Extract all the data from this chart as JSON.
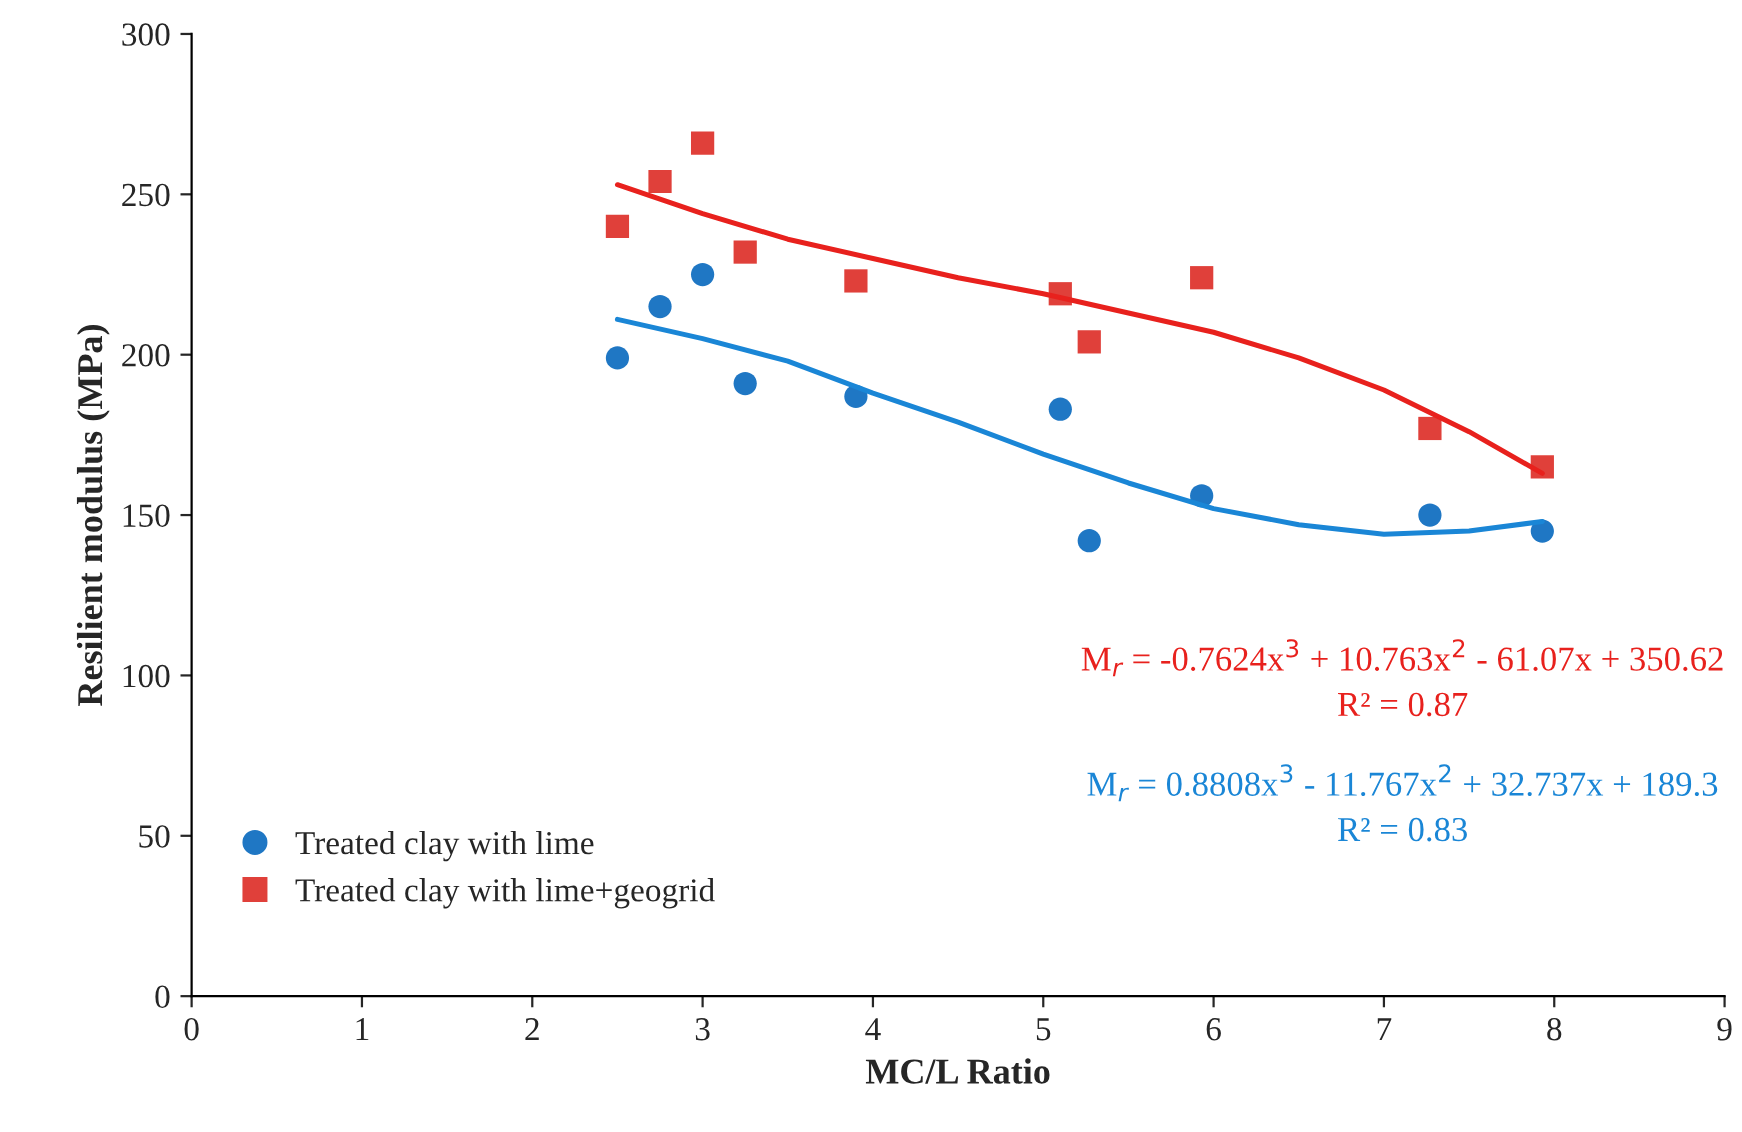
{
  "chart_data": {
    "type": "scatter",
    "xlabel": "MC/L Ratio",
    "ylabel": "Resilient modulus (MPa)",
    "xlim": [
      0,
      9
    ],
    "xticks": [
      0,
      1,
      2,
      3,
      4,
      5,
      6,
      7,
      8,
      9
    ],
    "ylim": [
      0,
      300
    ],
    "yticks": [
      0,
      50,
      100,
      150,
      200,
      250,
      300
    ],
    "grid": false,
    "legend": "bottom left",
    "series": [
      {
        "name": "Treated clay with lime",
        "color": "#1f77c4",
        "marker": "circle",
        "x": [
          2.5,
          2.75,
          3.0,
          3.25,
          3.9,
          5.1,
          5.27,
          5.93,
          7.27,
          7.93
        ],
        "values": [
          199,
          215,
          225,
          191,
          187,
          183,
          142,
          156,
          150,
          145
        ]
      },
      {
        "name": "Treated clay with lime+geogrid",
        "color": "#e0403a",
        "marker": "square",
        "x": [
          2.5,
          2.75,
          3.0,
          3.25,
          3.9,
          5.1,
          5.27,
          5.93,
          7.27,
          7.93
        ],
        "values": [
          240,
          254,
          266,
          232,
          223,
          219,
          204,
          224,
          177,
          165
        ]
      },
      {
        "type": "line",
        "color": "#e8211d",
        "x": [
          2.5,
          3,
          3.5,
          4,
          4.5,
          5,
          5.5,
          6,
          6.5,
          7,
          7.5,
          7.93
        ],
        "values": [
          253,
          244,
          236,
          230,
          224,
          219,
          213,
          207,
          199,
          189,
          176,
          163
        ]
      },
      {
        "type": "line",
        "color": "#1a86d6",
        "x": [
          2.5,
          3,
          3.5,
          4,
          4.5,
          5,
          5.5,
          6,
          6.5,
          7,
          7.5,
          7.93
        ],
        "values": [
          211,
          205,
          198,
          188,
          179,
          169,
          160,
          152,
          147,
          144,
          145,
          148
        ]
      }
    ],
    "annotations": [
      "M$_{r}$ = -0.7624x$^{3}$ + 10.763x$^{2}$ - 61.07x + 350.62",
      "R² = 0.87",
      "M$_{r}$ = 0.8808x$^{3}$ - 11.767x$^{2}$ + 32.737x + 189.3",
      "R² = 0.83"
    ]
  }
}
